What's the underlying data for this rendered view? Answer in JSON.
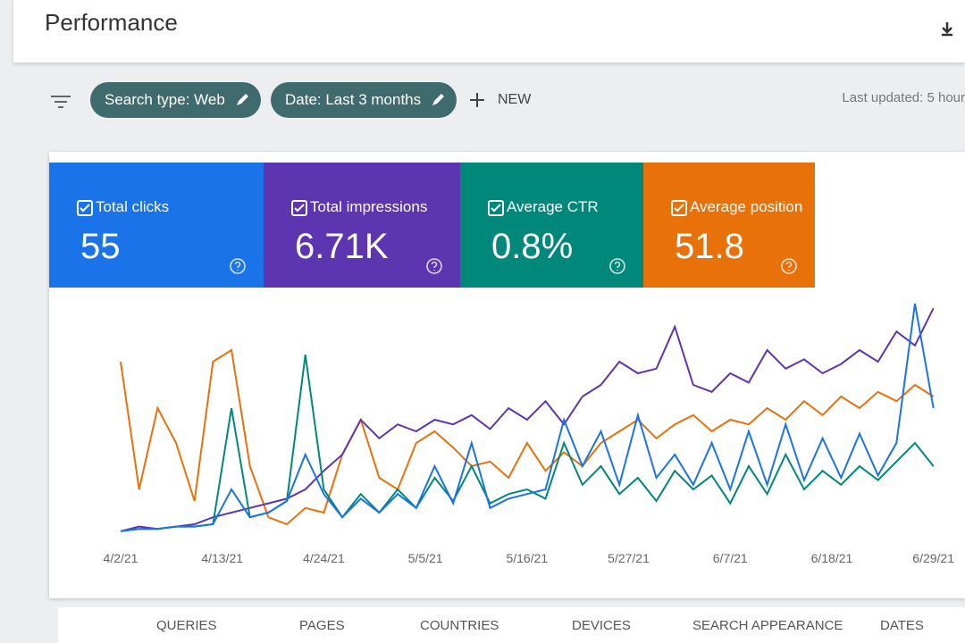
{
  "header": {
    "title": "Performance"
  },
  "toolbar": {
    "filters": [
      "Search type: Web",
      "Date: Last 3 months"
    ],
    "new": "NEW",
    "last_updated": "Last updated: 5 hour"
  },
  "metrics": [
    {
      "label": "Total clicks",
      "value": "55",
      "color": "#1a73e8"
    },
    {
      "label": "Total impressions",
      "value": "6.71K",
      "color": "#5e35b1"
    },
    {
      "label": "Average CTR",
      "value": "0.8%",
      "color": "#00897b"
    },
    {
      "label": "Average position",
      "value": "51.8",
      "color": "#e8710a"
    }
  ],
  "chart_data": {
    "type": "line",
    "x": [
      0,
      2,
      4,
      6,
      8,
      10,
      12,
      14,
      16,
      18,
      20,
      22,
      24,
      26,
      28,
      30,
      32,
      34,
      36,
      38,
      40,
      42,
      44,
      46,
      48,
      50,
      52,
      54,
      56,
      58,
      60,
      62,
      64,
      66,
      68,
      70,
      72,
      74,
      76,
      78,
      80,
      82,
      84,
      86,
      88
    ],
    "xlim": [
      0,
      89
    ],
    "xticks": [
      {
        "value": 0,
        "label": "4/2/21"
      },
      {
        "value": 11,
        "label": "4/13/21"
      },
      {
        "value": 22,
        "label": "4/24/21"
      },
      {
        "value": 33,
        "label": "5/5/21"
      },
      {
        "value": 44,
        "label": "5/16/21"
      },
      {
        "value": 55,
        "label": "5/27/21"
      },
      {
        "value": 66,
        "label": "6/7/21"
      },
      {
        "value": 77,
        "label": "6/18/21"
      },
      {
        "value": 88,
        "label": "6/29/21"
      }
    ],
    "ylim": [
      0,
      100
    ],
    "series": [
      {
        "color": "#e8710a",
        "values": [
          75,
          20,
          55,
          40,
          15,
          75,
          80,
          30,
          8,
          5,
          12,
          10,
          35,
          50,
          25,
          20,
          40,
          45,
          38,
          30,
          32,
          25,
          40,
          28,
          36,
          30,
          40,
          45,
          50,
          42,
          48,
          52,
          45,
          50,
          48,
          55,
          50,
          58,
          52,
          60,
          55,
          62,
          58,
          65,
          60
        ]
      },
      {
        "color": "#5e35b1",
        "values": [
          2,
          4,
          3,
          4,
          5,
          8,
          10,
          12,
          14,
          16,
          20,
          28,
          35,
          50,
          42,
          48,
          45,
          50,
          48,
          52,
          46,
          55,
          50,
          58,
          48,
          60,
          65,
          75,
          70,
          72,
          90,
          65,
          62,
          70,
          66,
          80,
          72,
          76,
          70,
          74,
          80,
          75,
          88,
          82,
          98
        ]
      },
      {
        "color": "#00897b",
        "values": [
          2,
          3,
          3,
          4,
          4,
          5,
          55,
          8,
          10,
          15,
          78,
          20,
          8,
          18,
          10,
          20,
          12,
          25,
          15,
          30,
          14,
          18,
          20,
          16,
          40,
          22,
          30,
          18,
          25,
          15,
          28,
          20,
          26,
          14,
          30,
          18,
          35,
          20,
          28,
          22,
          30,
          24,
          32,
          40,
          30
        ]
      },
      {
        "color": "#1a73e8",
        "values": [
          2,
          3,
          3,
          4,
          4,
          5,
          20,
          8,
          10,
          15,
          35,
          18,
          8,
          16,
          10,
          18,
          12,
          30,
          14,
          40,
          12,
          16,
          18,
          20,
          50,
          30,
          45,
          22,
          52,
          25,
          35,
          22,
          40,
          20,
          45,
          22,
          48,
          24,
          42,
          25,
          44,
          26,
          40,
          100,
          55
        ]
      }
    ]
  },
  "tabs": [
    "QUERIES",
    "PAGES",
    "COUNTRIES",
    "DEVICES",
    "SEARCH APPEARANCE",
    "DATES"
  ]
}
